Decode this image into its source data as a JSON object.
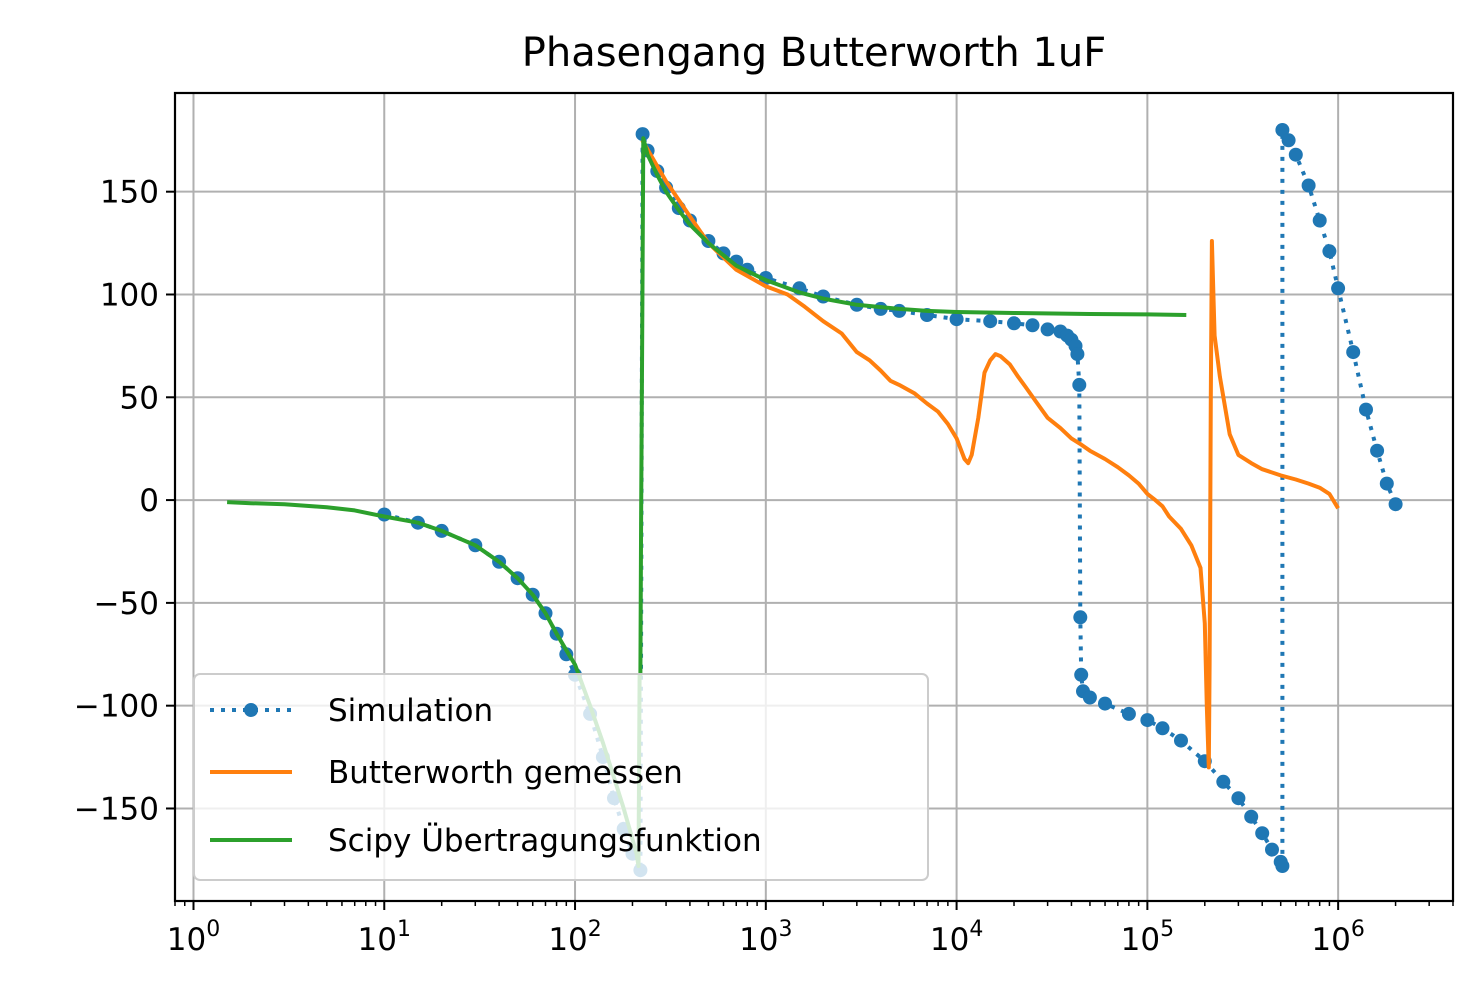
{
  "chart_data": {
    "type": "line",
    "title": "Phasengang Butterworth 1uF",
    "xlabel": "",
    "ylabel": "",
    "xscale": "log",
    "xlim": [
      0.8,
      4000000
    ],
    "ylim": [
      -195,
      198
    ],
    "grid": true,
    "legend_position": "lower-left",
    "x_ticks": [
      {
        "value": 1,
        "base": "10",
        "exp": "0"
      },
      {
        "value": 10,
        "base": "10",
        "exp": "1"
      },
      {
        "value": 100,
        "base": "10",
        "exp": "2"
      },
      {
        "value": 1000,
        "base": "10",
        "exp": "3"
      },
      {
        "value": 10000,
        "base": "10",
        "exp": "4"
      },
      {
        "value": 100000,
        "base": "10",
        "exp": "5"
      },
      {
        "value": 1000000,
        "base": "10",
        "exp": "6"
      }
    ],
    "y_ticks": [
      {
        "value": 150,
        "label": "150"
      },
      {
        "value": 100,
        "label": "100"
      },
      {
        "value": 50,
        "label": "50"
      },
      {
        "value": 0,
        "label": "0"
      },
      {
        "value": -50,
        "label": "−50"
      },
      {
        "value": -100,
        "label": "−100"
      },
      {
        "value": -150,
        "label": "−150"
      }
    ],
    "series": [
      {
        "name": "Simulation",
        "color": "#1f77b4",
        "style": "dotted-markers",
        "points": [
          [
            10,
            -7
          ],
          [
            15,
            -11
          ],
          [
            20,
            -15
          ],
          [
            30,
            -22
          ],
          [
            40,
            -30
          ],
          [
            50,
            -38
          ],
          [
            60,
            -46
          ],
          [
            70,
            -55
          ],
          [
            80,
            -65
          ],
          [
            90,
            -75
          ],
          [
            100,
            -85
          ],
          [
            120,
            -104
          ],
          [
            140,
            -125
          ],
          [
            160,
            -145
          ],
          [
            180,
            -160
          ],
          [
            200,
            -172
          ],
          [
            220,
            -180
          ],
          [
            226,
            178
          ],
          [
            240,
            170
          ],
          [
            270,
            160
          ],
          [
            300,
            152
          ],
          [
            350,
            142
          ],
          [
            400,
            136
          ],
          [
            500,
            126
          ],
          [
            600,
            120
          ],
          [
            700,
            116
          ],
          [
            800,
            112
          ],
          [
            1000,
            108
          ],
          [
            1500,
            103
          ],
          [
            2000,
            99
          ],
          [
            3000,
            95
          ],
          [
            4000,
            93
          ],
          [
            5000,
            92
          ],
          [
            7000,
            90
          ],
          [
            10000,
            88
          ],
          [
            15000,
            87
          ],
          [
            20000,
            86
          ],
          [
            25000,
            85
          ],
          [
            30000,
            83
          ],
          [
            35000,
            82
          ],
          [
            38000,
            80
          ],
          [
            40000,
            78
          ],
          [
            42000,
            75
          ],
          [
            43000,
            71
          ],
          [
            44000,
            56
          ],
          [
            44500,
            -57
          ],
          [
            45000,
            -85
          ],
          [
            46000,
            -93
          ],
          [
            50000,
            -96
          ],
          [
            60000,
            -99
          ],
          [
            80000,
            -104
          ],
          [
            100000,
            -107
          ],
          [
            120000,
            -111
          ],
          [
            150000,
            -117
          ],
          [
            200000,
            -127
          ],
          [
            250000,
            -137
          ],
          [
            300000,
            -145
          ],
          [
            350000,
            -154
          ],
          [
            400000,
            -162
          ],
          [
            450000,
            -170
          ],
          [
            500000,
            -176
          ],
          [
            510000,
            -178
          ],
          [
            510000,
            180
          ],
          [
            550000,
            175
          ],
          [
            600000,
            168
          ],
          [
            700000,
            153
          ],
          [
            800000,
            136
          ],
          [
            900000,
            121
          ],
          [
            1000000,
            103
          ],
          [
            1200000,
            72
          ],
          [
            1400000,
            44
          ],
          [
            1600000,
            24
          ],
          [
            1800000,
            8
          ],
          [
            2000000,
            -2
          ]
        ]
      },
      {
        "name": "Butterworth gemessen",
        "color": "#ff7f0e",
        "style": "line",
        "points": [
          [
            225,
            175
          ],
          [
            300,
            155
          ],
          [
            400,
            138
          ],
          [
            500,
            125
          ],
          [
            700,
            112
          ],
          [
            1000,
            104
          ],
          [
            1300,
            100
          ],
          [
            1600,
            94
          ],
          [
            2000,
            87
          ],
          [
            2500,
            81
          ],
          [
            3000,
            72
          ],
          [
            3500,
            68
          ],
          [
            4000,
            63
          ],
          [
            4500,
            58
          ],
          [
            5000,
            56
          ],
          [
            6000,
            52
          ],
          [
            7000,
            47
          ],
          [
            8000,
            43
          ],
          [
            9000,
            37
          ],
          [
            10000,
            30
          ],
          [
            11000,
            20
          ],
          [
            11500,
            18
          ],
          [
            12000,
            22
          ],
          [
            13000,
            40
          ],
          [
            14000,
            62
          ],
          [
            15000,
            68
          ],
          [
            16000,
            71
          ],
          [
            17000,
            70
          ],
          [
            19000,
            66
          ],
          [
            21000,
            60
          ],
          [
            23000,
            55
          ],
          [
            26000,
            48
          ],
          [
            30000,
            40
          ],
          [
            35000,
            35
          ],
          [
            40000,
            30
          ],
          [
            45000,
            27
          ],
          [
            50000,
            24
          ],
          [
            60000,
            20
          ],
          [
            70000,
            16
          ],
          [
            80000,
            12
          ],
          [
            90000,
            8
          ],
          [
            100000,
            3
          ],
          [
            110000,
            0
          ],
          [
            120000,
            -3
          ],
          [
            130000,
            -8
          ],
          [
            150000,
            -14
          ],
          [
            170000,
            -22
          ],
          [
            190000,
            -33
          ],
          [
            200000,
            -60
          ],
          [
            205000,
            -100
          ],
          [
            210000,
            -130
          ],
          [
            212000,
            -80
          ],
          [
            215000,
            50
          ],
          [
            218000,
            126
          ],
          [
            222000,
            100
          ],
          [
            225000,
            80
          ],
          [
            240000,
            60
          ],
          [
            270000,
            32
          ],
          [
            300000,
            22
          ],
          [
            350000,
            18
          ],
          [
            400000,
            15
          ],
          [
            500000,
            12
          ],
          [
            600000,
            10
          ],
          [
            700000,
            8
          ],
          [
            800000,
            6
          ],
          [
            900000,
            3
          ],
          [
            1000000,
            -4
          ]
        ]
      },
      {
        "name": "Scipy Übertragungsfunktion",
        "color": "#2ca02c",
        "style": "line",
        "points": [
          [
            1.5,
            -1
          ],
          [
            2,
            -1.5
          ],
          [
            3,
            -2
          ],
          [
            5,
            -3.5
          ],
          [
            7,
            -5
          ],
          [
            10,
            -8
          ],
          [
            15,
            -11
          ],
          [
            20,
            -15
          ],
          [
            30,
            -22
          ],
          [
            40,
            -30
          ],
          [
            50,
            -38
          ],
          [
            60,
            -46
          ],
          [
            70,
            -55
          ],
          [
            80,
            -65
          ],
          [
            90,
            -73
          ],
          [
            100,
            -80
          ],
          [
            120,
            -100
          ],
          [
            140,
            -118
          ],
          [
            160,
            -135
          ],
          [
            180,
            -150
          ],
          [
            200,
            -165
          ],
          [
            210,
            -172
          ],
          [
            215,
            -178
          ],
          [
            218,
            -85
          ],
          [
            220,
            -85
          ],
          [
            222,
            -10
          ],
          [
            225,
            80
          ],
          [
            228,
            176
          ],
          [
            240,
            168
          ],
          [
            270,
            158
          ],
          [
            300,
            150
          ],
          [
            350,
            141
          ],
          [
            400,
            134
          ],
          [
            500,
            125
          ],
          [
            700,
            114
          ],
          [
            1000,
            107
          ],
          [
            1500,
            101
          ],
          [
            2000,
            98
          ],
          [
            3000,
            95
          ],
          [
            5000,
            93
          ],
          [
            7000,
            92
          ],
          [
            10000,
            91.5
          ],
          [
            20000,
            91
          ],
          [
            50000,
            90.5
          ],
          [
            100000,
            90.3
          ],
          [
            160000,
            90
          ]
        ]
      }
    ]
  }
}
